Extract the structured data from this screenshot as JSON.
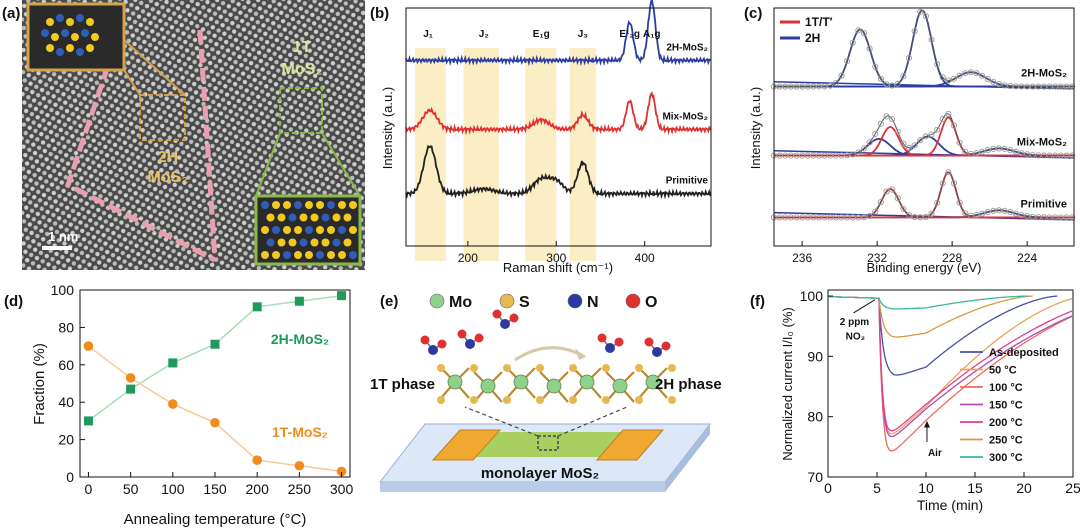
{
  "panel_labels": {
    "a": "(a)",
    "b": "(b)",
    "c": "(c)",
    "d": "(d)",
    "e": "(e)",
    "f": "(f)"
  },
  "panel_a": {
    "label_1t_line1": "1T",
    "label_1t_line2": "MoS₂",
    "label_2h_line1": "2H",
    "label_2h_line2": "MoS₂",
    "scalebar": "1 nm",
    "colors": {
      "mo": "#2f5db8",
      "s": "#f2c91e",
      "frame_2h": "#d4a24a",
      "frame_1t": "#8ab84a"
    }
  },
  "chart_data": [
    {
      "id": "b",
      "type": "line",
      "xlabel": "Raman shift (cm⁻¹)",
      "ylabel": "Intensity (a.u.)",
      "xlim": [
        130,
        475
      ],
      "xticks": [
        200,
        300,
        400
      ],
      "peak_labels": [
        {
          "text": "J₁",
          "x": 155
        },
        {
          "text": "J₂",
          "x": 218
        },
        {
          "text": "E₁g",
          "x": 283
        },
        {
          "text": "J₃",
          "x": 330
        },
        {
          "text": "E¹₂g",
          "x": 383
        },
        {
          "text": "A₁g",
          "x": 408
        }
      ],
      "shaded_bands": [
        [
          140,
          175
        ],
        [
          195,
          235
        ],
        [
          265,
          300
        ],
        [
          315,
          345
        ]
      ],
      "series": [
        {
          "name": "2H-MoS₂",
          "color": "#2a3ea0",
          "baseline": 0.78,
          "peaks": [
            [
              383,
              0.16,
              4
            ],
            [
              408,
              0.25,
              4
            ]
          ]
        },
        {
          "name": "Mix-MoS₂",
          "color": "#e03030",
          "baseline": 0.49,
          "peaks": [
            [
              157,
              0.08,
              8
            ],
            [
              283,
              0.04,
              9
            ],
            [
              330,
              0.06,
              6
            ],
            [
              383,
              0.12,
              4
            ],
            [
              408,
              0.15,
              4
            ]
          ]
        },
        {
          "name": "Primitive",
          "color": "#222222",
          "baseline": 0.22,
          "peaks": [
            [
              157,
              0.2,
              7
            ],
            [
              218,
              0.02,
              12
            ],
            [
              283,
              0.06,
              9
            ],
            [
              300,
              0.05,
              8
            ],
            [
              330,
              0.13,
              6
            ]
          ]
        }
      ]
    },
    {
      "id": "c",
      "type": "line",
      "xlabel": "Binding energy (eV)",
      "ylabel": "Intensity (a.u.)",
      "xlim": [
        237.5,
        221.5
      ],
      "xticks": [
        236,
        232,
        228,
        224
      ],
      "legend": [
        {
          "name": "1T/T′",
          "color": "#e03030"
        },
        {
          "name": "2H",
          "color": "#2a3ea0"
        }
      ],
      "legend_position": "top-left",
      "traces": [
        {
          "name": "2H-MoS₂",
          "baseline": 0.67,
          "components_2h": [
            [
              232.9,
              0.24,
              0.55
            ],
            [
              229.6,
              0.32,
              0.5
            ],
            [
              227.0,
              0.06,
              0.8
            ]
          ],
          "components_1t": []
        },
        {
          "name": "Mix-MoS₂",
          "baseline": 0.38,
          "components_2h": [
            [
              231.9,
              0.07,
              0.6
            ],
            [
              229.3,
              0.08,
              0.6
            ],
            [
              225.5,
              0.03,
              0.8
            ]
          ],
          "components_1t": [
            [
              231.3,
              0.12,
              0.45
            ],
            [
              228.2,
              0.16,
              0.4
            ]
          ]
        },
        {
          "name": "Primitive",
          "baseline": 0.12,
          "components_2h": [
            [
              225.5,
              0.03,
              0.8
            ]
          ],
          "components_1t": [
            [
              231.3,
              0.12,
              0.45
            ],
            [
              228.2,
              0.19,
              0.4
            ]
          ]
        }
      ]
    },
    {
      "id": "d",
      "type": "line",
      "xlabel": "Annealing temperature (°C)",
      "ylabel": "Fraction (%)",
      "xlim": [
        -10,
        310
      ],
      "ylim": [
        0,
        100
      ],
      "xticks": [
        0,
        50,
        100,
        150,
        200,
        250,
        300
      ],
      "yticks": [
        0,
        20,
        40,
        60,
        80,
        100
      ],
      "x": [
        0,
        50,
        100,
        150,
        200,
        250,
        300
      ],
      "series": [
        {
          "name": "2H-MoS₂",
          "color": "#1f9a5a",
          "values": [
            30,
            47,
            61,
            71,
            91,
            94,
            97
          ]
        },
        {
          "name": "1T-MoS₂",
          "color": "#f08c1e",
          "values": [
            70,
            53,
            39,
            29,
            9,
            6,
            3
          ]
        }
      ]
    },
    {
      "id": "f",
      "type": "line",
      "xlabel": "Time (min)",
      "ylabel": "Normalized current I/I₀ (%)",
      "xlim": [
        0,
        25
      ],
      "ylim": [
        70,
        101
      ],
      "xticks": [
        0,
        5,
        10,
        15,
        20,
        25
      ],
      "yticks": [
        70,
        80,
        90,
        100
      ],
      "annotations": [
        {
          "text": "2 ppm",
          "x": 1.2,
          "y": 95.2
        },
        {
          "text": "NO₂",
          "x": 1.8,
          "y": 92.8
        },
        {
          "text": "Air",
          "x": 10.2,
          "y": 73.5
        }
      ],
      "series": [
        {
          "name": "As-deposited",
          "color": "#4a4fa8",
          "min": 86.5,
          "tail": 13.5,
          "ends": [
            5.2,
            10.0
          ]
        },
        {
          "name": "50 °C",
          "color": "#e8a45a",
          "min": 76.0,
          "tail": 16.5,
          "ends": [
            5.2,
            10.0
          ]
        },
        {
          "name": "100 °C",
          "color": "#f06a5a",
          "min": 73.0,
          "tail": 22.0,
          "ends": [
            5.2,
            10.0
          ]
        },
        {
          "name": "150 °C",
          "color": "#b04ab8",
          "min": 75.5,
          "tail": 22.5,
          "ends": [
            5.2,
            10.0
          ]
        },
        {
          "name": "200 °C",
          "color": "#e0408a",
          "min": 76.5,
          "tail": 21.0,
          "ends": [
            5.2,
            10.0
          ]
        },
        {
          "name": "250 °C",
          "color": "#d89a40",
          "min": 93.0,
          "tail": 11.0,
          "ends": [
            5.2,
            10.0
          ]
        },
        {
          "name": "300 °C",
          "color": "#3ab8a0",
          "min": 97.8,
          "tail": 10.5,
          "ends": [
            5.2,
            10.0
          ]
        }
      ]
    }
  ],
  "panel_e": {
    "legend": [
      {
        "name": "Mo",
        "color": "#8fd08a"
      },
      {
        "name": "S",
        "color": "#e8b850"
      },
      {
        "name": "N",
        "color": "#2a3aa0"
      },
      {
        "name": "O",
        "color": "#e03030"
      }
    ],
    "left_label": "1T phase",
    "right_label": "2H phase",
    "substrate_label": "monolayer MoS₂"
  }
}
